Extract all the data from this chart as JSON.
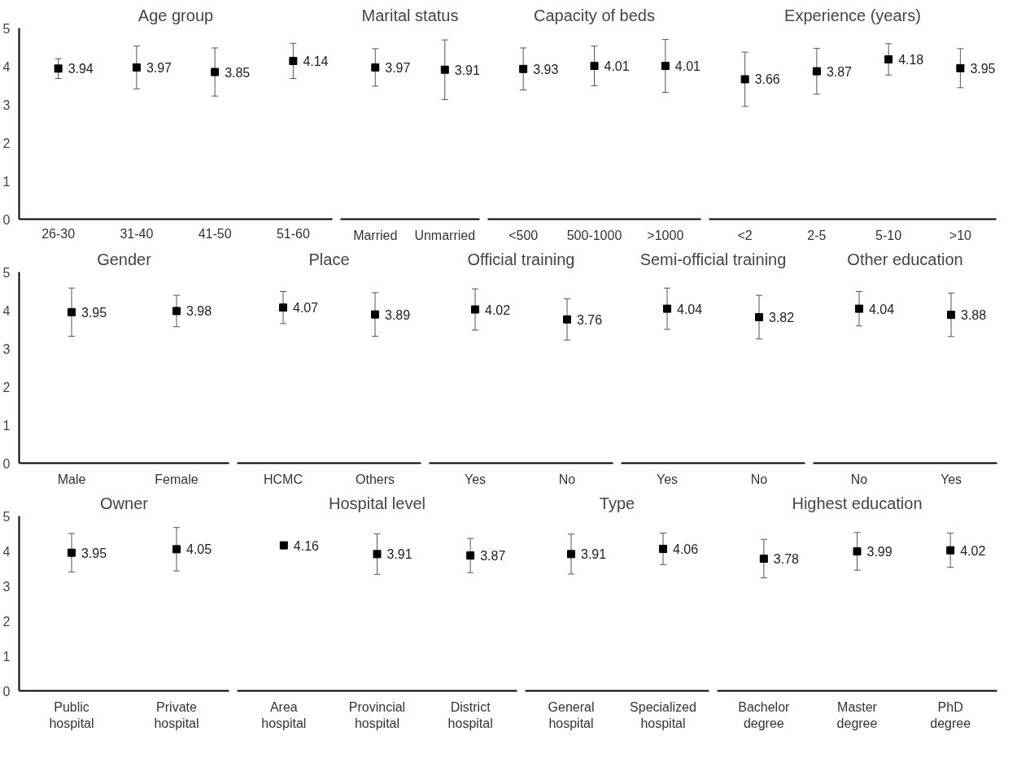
{
  "chart_data": [
    {
      "type": "scatter",
      "title": "Age group",
      "categories": [
        "26-30",
        "31-40",
        "41-50",
        "51-60"
      ],
      "values": [
        3.94,
        3.97,
        3.85,
        4.14
      ],
      "errors": [
        0.26,
        0.56,
        0.63,
        0.46
      ],
      "color": "#000000",
      "marker": "square",
      "data_labels": true,
      "grid": false,
      "ylim": [
        0,
        5
      ],
      "yticks": [
        0,
        1,
        2,
        3,
        4,
        5
      ]
    },
    {
      "type": "scatter",
      "title": "Marital status",
      "categories": [
        "Married",
        "Unmarried"
      ],
      "values": [
        3.97,
        3.91
      ],
      "errors": [
        0.49,
        0.78
      ],
      "color": "#000000",
      "marker": "square",
      "data_labels": true,
      "grid": false,
      "ylim": [
        0,
        5
      ],
      "tick_labels": "x"
    },
    {
      "type": "scatter",
      "title": "Capacity of beds",
      "categories": [
        "<500",
        "500-1000",
        ">1000"
      ],
      "values": [
        3.93,
        4.01,
        4.01
      ],
      "errors": [
        0.55,
        0.52,
        0.69
      ],
      "color": "#000000",
      "marker": "square",
      "data_labels": true,
      "grid": false,
      "ylim": [
        0,
        5
      ],
      "tick_labels": "x"
    },
    {
      "type": "scatter",
      "title": "Experience (years)",
      "categories": [
        "<2",
        "2-5",
        "5-10",
        ">10"
      ],
      "values": [
        3.66,
        3.87,
        4.18,
        3.95
      ],
      "errors": [
        0.71,
        0.6,
        0.41,
        0.51
      ],
      "color": "#000000",
      "marker": "square",
      "data_labels": true,
      "grid": false,
      "ylim": [
        0,
        5
      ],
      "tick_labels": "x"
    },
    {
      "type": "scatter",
      "title": "Gender",
      "categories": [
        "Male",
        "Female"
      ],
      "values": [
        3.95,
        3.98
      ],
      "errors": [
        0.63,
        0.41
      ],
      "color": "#000000",
      "marker": "square",
      "data_labels": true,
      "grid": false,
      "ylim": [
        0,
        5
      ],
      "yticks": [
        0,
        1,
        2,
        3,
        4,
        5
      ]
    },
    {
      "type": "scatter",
      "title": "Place",
      "categories": [
        "HCMC",
        "Others"
      ],
      "values": [
        4.07,
        3.89
      ],
      "errors": [
        0.42,
        0.57
      ],
      "color": "#000000",
      "marker": "square",
      "data_labels": true,
      "grid": false,
      "ylim": [
        0,
        5
      ],
      "tick_labels": "x"
    },
    {
      "type": "scatter",
      "title": "Official training",
      "categories": [
        "Yes",
        "No"
      ],
      "values": [
        4.02,
        3.76
      ],
      "errors": [
        0.54,
        0.54
      ],
      "color": "#000000",
      "marker": "square",
      "data_labels": true,
      "grid": false,
      "ylim": [
        0,
        5
      ],
      "tick_labels": "x"
    },
    {
      "type": "scatter",
      "title": "Semi-official training",
      "categories": [
        "Yes",
        "No"
      ],
      "values": [
        4.04,
        3.82
      ],
      "errors": [
        0.54,
        0.57
      ],
      "color": "#000000",
      "marker": "square",
      "data_labels": true,
      "grid": false,
      "ylim": [
        0,
        5
      ],
      "tick_labels": "x"
    },
    {
      "type": "scatter",
      "title": "Other education",
      "categories": [
        "No",
        "Yes"
      ],
      "values": [
        4.04,
        3.88
      ],
      "errors": [
        0.45,
        0.57
      ],
      "color": "#000000",
      "marker": "square",
      "data_labels": true,
      "grid": false,
      "ylim": [
        0,
        5
      ],
      "tick_labels": "x"
    },
    {
      "type": "scatter",
      "title": "Owner",
      "categories": [
        "Public hospital",
        "Private hospital"
      ],
      "values": [
        3.95,
        4.05
      ],
      "errors": [
        0.55,
        0.62
      ],
      "color": "#000000",
      "marker": "square",
      "data_labels": true,
      "grid": false,
      "ylim": [
        0,
        5
      ],
      "yticks": [
        0,
        1,
        2,
        3,
        4,
        5
      ]
    },
    {
      "type": "scatter",
      "title": "Hospital level",
      "categories": [
        "Area hospital",
        "Provincial hospital",
        "District hospital"
      ],
      "values": [
        4.16,
        3.91,
        3.87
      ],
      "errors": [
        null,
        0.58,
        0.49
      ],
      "color": "#000000",
      "marker": "square",
      "data_labels": true,
      "grid": false,
      "ylim": [
        0,
        5
      ],
      "tick_labels": "x"
    },
    {
      "type": "scatter",
      "title": "Type",
      "categories": [
        "General hospital",
        "Specialized hospital"
      ],
      "values": [
        3.91,
        4.06
      ],
      "errors": [
        0.57,
        0.45
      ],
      "color": "#000000",
      "marker": "square",
      "data_labels": true,
      "grid": false,
      "ylim": [
        0,
        5
      ],
      "tick_labels": "x"
    },
    {
      "type": "scatter",
      "title": "Highest education",
      "categories": [
        "Bachelor degree",
        "Master degree",
        "PhD degree"
      ],
      "values": [
        3.78,
        3.99,
        4.02
      ],
      "errors": [
        0.55,
        0.54,
        0.49
      ],
      "color": "#000000",
      "marker": "square",
      "data_labels": true,
      "grid": false,
      "ylim": [
        0,
        5
      ],
      "tick_labels": "x"
    }
  ]
}
